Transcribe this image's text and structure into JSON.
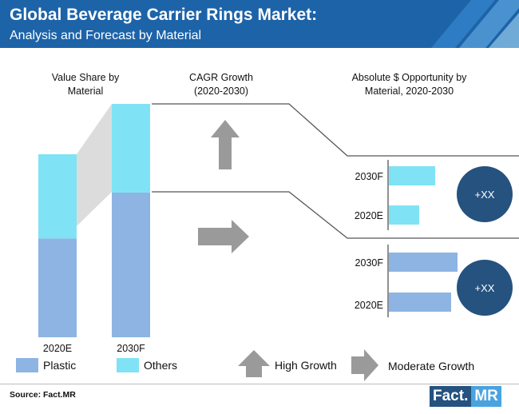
{
  "header": {
    "title": "Global Beverage Carrier Rings Market:",
    "subtitle": "Analysis and Forecast by Material"
  },
  "sections": {
    "value_share": "Value Share by Material",
    "cagr": "CAGR Growth (2020-2030)",
    "opportunity": "Absolute $ Opportunity by Material, 2020-2030"
  },
  "colors": {
    "plastic": "#8db4e2",
    "others": "#7fe3f5",
    "header": "#1d63a8",
    "circle": "#25527f",
    "arrow": "#9a9a9a"
  },
  "chart_data": [
    {
      "type": "bar",
      "stacked": true,
      "categories": [
        "2020E",
        "2030F"
      ],
      "series": [
        {
          "name": "Plastic",
          "values": [
            54,
            62
          ]
        },
        {
          "name": "Others",
          "values": [
            46,
            38
          ]
        }
      ],
      "ylim": [
        0,
        100
      ]
    },
    {
      "type": "bar",
      "orientation": "horizontal",
      "group": "Others",
      "categories": [
        "2030F",
        "2020E"
      ],
      "values": [
        58,
        38
      ],
      "badge": "+XX",
      "growth": "High Growth"
    },
    {
      "type": "bar",
      "orientation": "horizontal",
      "group": "Plastic",
      "categories": [
        "2030F",
        "2020E"
      ],
      "values": [
        86,
        78
      ],
      "badge": "+XX",
      "growth": "Moderate Growth"
    }
  ],
  "legend": {
    "plastic": "Plastic",
    "others": "Others",
    "high_growth": "High Growth",
    "moderate_growth": "Moderate Growth"
  },
  "footer": {
    "source": "Source: Fact.MR",
    "logo_fact": "Fact.",
    "logo_mr": "MR"
  }
}
